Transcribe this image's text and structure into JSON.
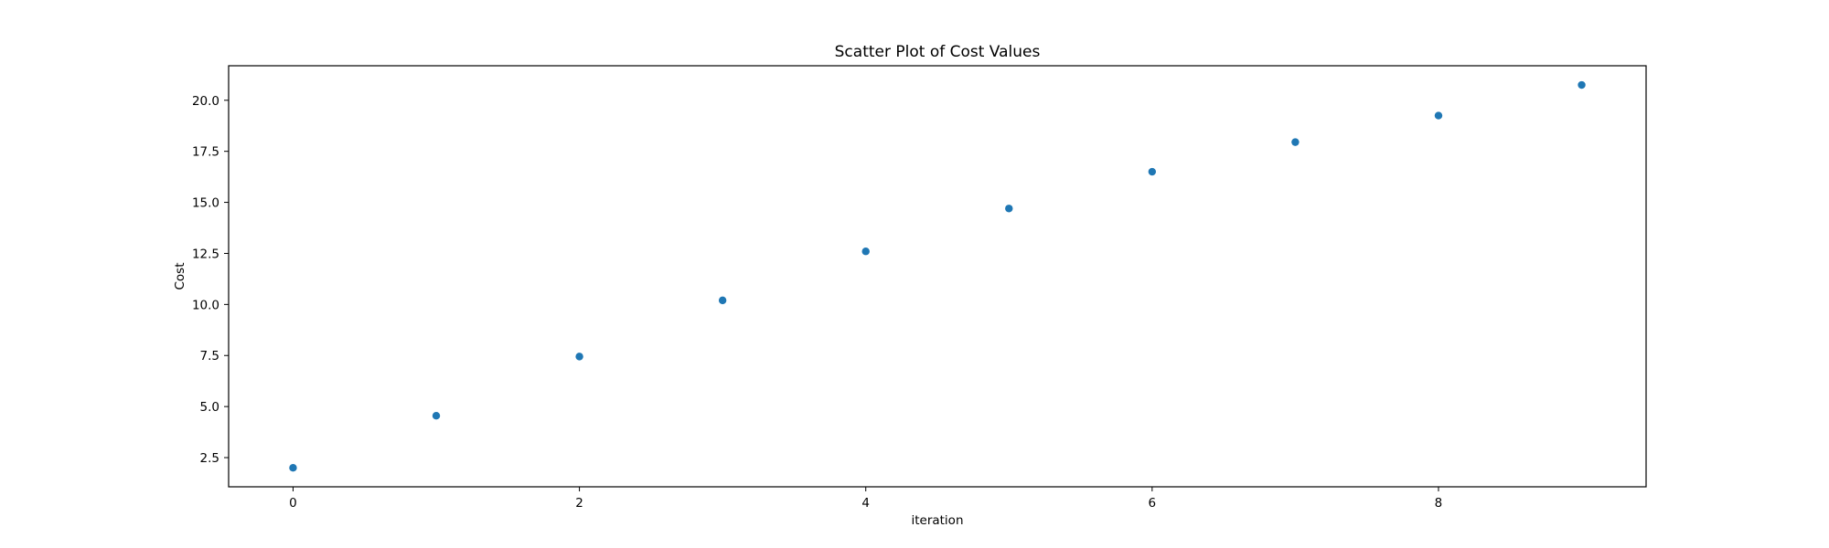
{
  "chart_data": {
    "type": "scatter",
    "title": "Scatter Plot of Cost Values",
    "xlabel": "iteration",
    "ylabel": "Cost",
    "x": [
      0,
      1,
      2,
      3,
      4,
      5,
      6,
      7,
      8,
      9
    ],
    "y": [
      2.0,
      4.55,
      7.45,
      10.2,
      12.6,
      14.7,
      16.5,
      17.95,
      19.25,
      20.75
    ],
    "xlim": [
      -0.45,
      9.45
    ],
    "ylim": [
      1.07,
      21.69
    ],
    "xticks": [
      0,
      2,
      4,
      6,
      8
    ],
    "xtick_labels": [
      "0",
      "2",
      "4",
      "6",
      "8"
    ],
    "yticks": [
      2.5,
      5.0,
      7.5,
      10.0,
      12.5,
      15.0,
      17.5,
      20.0
    ],
    "ytick_labels": [
      "2.5",
      "5.0",
      "7.5",
      "10.0",
      "12.5",
      "15.0",
      "17.5",
      "20.0"
    ],
    "grid": false,
    "legend": "none",
    "marker_color": "#1f77b4"
  }
}
